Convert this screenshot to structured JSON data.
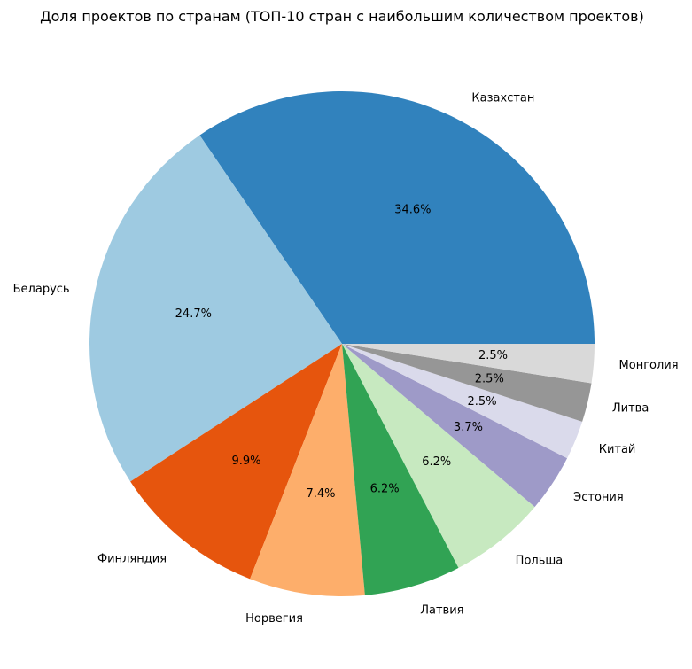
{
  "chart_data": {
    "type": "pie",
    "title": "Доля проектов по странам (ТОП-10 стран с наибольшим количеством проектов)",
    "start_angle_deg": 0,
    "direction": "counterclockwise",
    "slices": [
      {
        "label": "Казахстан",
        "value": 34.6,
        "pct_label": "34.6%",
        "color": "#3182bd"
      },
      {
        "label": "Беларусь",
        "value": 24.7,
        "pct_label": "24.7%",
        "color": "#9ecae1"
      },
      {
        "label": "Финляндия",
        "value": 9.9,
        "pct_label": "9.9%",
        "color": "#e6550d"
      },
      {
        "label": "Норвегия",
        "value": 7.4,
        "pct_label": "7.4%",
        "color": "#fdae6b"
      },
      {
        "label": "Латвия",
        "value": 6.2,
        "pct_label": "6.2%",
        "color": "#31a354"
      },
      {
        "label": "Польша",
        "value": 6.2,
        "pct_label": "6.2%",
        "color": "#c7e9c0"
      },
      {
        "label": "Эстония",
        "value": 3.7,
        "pct_label": "3.7%",
        "color": "#9e9ac8"
      },
      {
        "label": "Китай",
        "value": 2.5,
        "pct_label": "2.5%",
        "color": "#dadaeb"
      },
      {
        "label": "Литва",
        "value": 2.5,
        "pct_label": "2.5%",
        "color": "#969696"
      },
      {
        "label": "Монголия",
        "value": 2.5,
        "pct_label": "2.5%",
        "color": "#d9d9d9"
      }
    ]
  }
}
